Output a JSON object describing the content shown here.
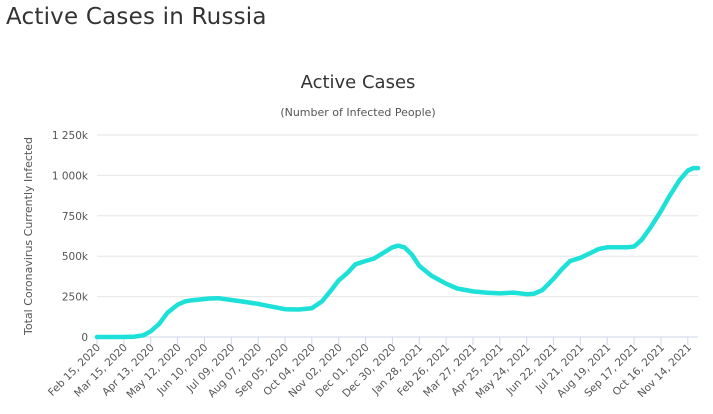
{
  "page": {
    "title": "Active Cases in Russia"
  },
  "colors": {
    "series": "#1de0d8",
    "grid": "#e6e6e6",
    "axis": "#ccd6eb",
    "text": "#333333"
  },
  "chart_data": {
    "type": "line",
    "title": "Active Cases",
    "subtitle": "(Number of Infected People)",
    "ylabel": "Total Coronavirus Currently Infected",
    "xlabel": "",
    "ylim": [
      0,
      1250000
    ],
    "yticks": [
      0,
      250000,
      500000,
      750000,
      1000000,
      1250000
    ],
    "ytick_labels": [
      "0",
      "250k",
      "500k",
      "750k",
      "1 000k",
      "1 250k"
    ],
    "xticks": [
      "2020-02-15",
      "2020-03-15",
      "2020-04-13",
      "2020-05-12",
      "2020-06-10",
      "2020-07-09",
      "2020-08-07",
      "2020-09-05",
      "2020-10-04",
      "2020-11-02",
      "2020-12-01",
      "2020-12-30",
      "2021-01-28",
      "2021-02-26",
      "2021-03-27",
      "2021-04-25",
      "2021-05-24",
      "2021-06-22",
      "2021-07-21",
      "2021-08-19",
      "2021-09-17",
      "2021-10-16",
      "2021-11-14"
    ],
    "xtick_labels": [
      "Feb 15, 2020",
      "Mar 15, 2020",
      "Apr 13, 2020",
      "May 12, 2020",
      "Jun 10, 2020",
      "Jul 09, 2020",
      "Aug 07, 2020",
      "Sep 05, 2020",
      "Oct 04, 2020",
      "Nov 02, 2020",
      "Dec 01, 2020",
      "Dec 30, 2020",
      "Jan 28, 2021",
      "Feb 26, 2021",
      "Mar 27, 2021",
      "Apr 25, 2021",
      "May 24, 2021",
      "Jun 22, 2021",
      "Jul 21, 2021",
      "Aug 19, 2021",
      "Sep 17, 2021",
      "Oct 16, 2021",
      "Nov 14, 2021"
    ],
    "xlim": [
      "2020-02-15",
      "2021-11-25"
    ],
    "grid": true,
    "legend": "none",
    "series": [
      {
        "x": [
          "2020-02-15",
          "2020-03-10",
          "2020-03-25",
          "2020-04-05",
          "2020-04-13",
          "2020-04-22",
          "2020-05-01",
          "2020-05-12",
          "2020-05-20",
          "2020-05-28",
          "2020-06-05",
          "2020-06-15",
          "2020-06-25",
          "2020-07-05",
          "2020-07-20",
          "2020-08-07",
          "2020-08-20",
          "2020-09-05",
          "2020-09-20",
          "2020-10-04",
          "2020-10-15",
          "2020-10-25",
          "2020-11-02",
          "2020-11-12",
          "2020-11-20",
          "2020-12-01",
          "2020-12-10",
          "2020-12-20",
          "2020-12-30",
          "2021-01-05",
          "2021-01-12",
          "2021-01-20",
          "2021-01-28",
          "2021-02-10",
          "2021-02-26",
          "2021-03-10",
          "2021-03-27",
          "2021-04-10",
          "2021-04-25",
          "2021-05-10",
          "2021-05-24",
          "2021-06-01",
          "2021-06-10",
          "2021-06-22",
          "2021-07-01",
          "2021-07-10",
          "2021-07-21",
          "2021-08-01",
          "2021-08-10",
          "2021-08-19",
          "2021-09-01",
          "2021-09-10",
          "2021-09-17",
          "2021-09-25",
          "2021-10-05",
          "2021-10-16",
          "2021-10-25",
          "2021-11-05",
          "2021-11-14",
          "2021-11-20",
          "2021-11-25"
        ],
        "values": [
          0,
          0,
          1000,
          10000,
          35000,
          80000,
          150000,
          200000,
          220000,
          228000,
          232000,
          238000,
          240000,
          232000,
          220000,
          205000,
          190000,
          172000,
          170000,
          178000,
          220000,
          290000,
          350000,
          400000,
          450000,
          470000,
          485000,
          520000,
          555000,
          565000,
          555000,
          510000,
          440000,
          380000,
          330000,
          300000,
          282000,
          275000,
          270000,
          275000,
          265000,
          268000,
          290000,
          360000,
          420000,
          470000,
          490000,
          520000,
          545000,
          555000,
          555000,
          555000,
          560000,
          600000,
          680000,
          780000,
          870000,
          970000,
          1030000,
          1045000,
          1045000
        ]
      }
    ]
  }
}
